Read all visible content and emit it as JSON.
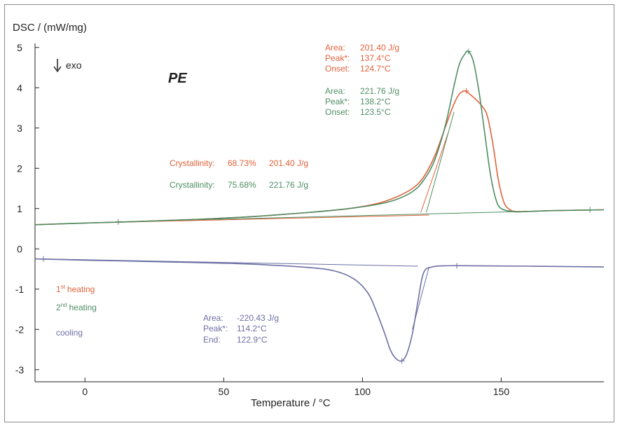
{
  "chart_data": {
    "type": "line",
    "title": "PE",
    "xlabel": "Temperature / °C",
    "ylabel": "DSC / (mW/mg)",
    "xlim": [
      -18,
      187
    ],
    "ylim": [
      -3.3,
      5.1
    ],
    "x_ticks": [
      "0",
      "50",
      "100",
      "150"
    ],
    "y_ticks": [
      "5",
      "4",
      "3",
      "2",
      "1",
      "0",
      "-1",
      "-2",
      "-3"
    ],
    "exo_label": "exo",
    "colors": {
      "first_heating": "#e0623a",
      "second_heating": "#4e8d64",
      "cooling": "#6c6fa4"
    },
    "series": [
      {
        "name": "1st heating",
        "x": [
          -18,
          0,
          20,
          40,
          60,
          80,
          95,
          105,
          112,
          118,
          122,
          126,
          130,
          133,
          135,
          137,
          139,
          141,
          143,
          145,
          147,
          149,
          151,
          153,
          155,
          160,
          170,
          187
        ],
        "y": [
          0.6,
          0.64,
          0.68,
          0.73,
          0.8,
          0.9,
          1.0,
          1.12,
          1.28,
          1.5,
          1.78,
          2.3,
          3.05,
          3.6,
          3.85,
          3.92,
          3.82,
          3.7,
          3.55,
          3.3,
          2.6,
          1.7,
          1.15,
          0.98,
          0.93,
          0.93,
          0.95,
          0.97
        ]
      },
      {
        "name": "2nd heating",
        "x": [
          -18,
          0,
          20,
          40,
          60,
          80,
          95,
          105,
          112,
          118,
          122,
          126,
          130,
          133,
          135,
          137,
          138.2,
          140,
          142,
          144,
          146,
          148,
          150,
          155,
          160,
          170,
          187
        ],
        "y": [
          0.6,
          0.64,
          0.68,
          0.73,
          0.8,
          0.9,
          1.0,
          1.1,
          1.22,
          1.42,
          1.7,
          2.2,
          3.1,
          4.05,
          4.6,
          4.85,
          4.9,
          4.65,
          3.9,
          2.9,
          1.9,
          1.25,
          1.0,
          0.92,
          0.93,
          0.95,
          0.97
        ]
      },
      {
        "name": "cooling",
        "x": [
          -18,
          0,
          20,
          40,
          60,
          80,
          90,
          97,
          102,
          105,
          108,
          110,
          112,
          114.2,
          116,
          118,
          120,
          122,
          125,
          130,
          140,
          160,
          187
        ],
        "y": [
          -0.25,
          -0.28,
          -0.31,
          -0.34,
          -0.38,
          -0.46,
          -0.55,
          -0.75,
          -1.1,
          -1.55,
          -2.1,
          -2.5,
          -2.72,
          -2.78,
          -2.6,
          -2.1,
          -1.3,
          -0.6,
          -0.45,
          -0.42,
          -0.42,
          -0.43,
          -0.45
        ]
      }
    ],
    "legend": {
      "first_heating_prefix": "1",
      "first_heating_sup": "st",
      "first_heating_label": "heating",
      "second_heating_prefix": "2",
      "second_heating_sup": "nd",
      "second_heating_label": "heating",
      "cooling_label": "cooling"
    },
    "annotations": {
      "first_heating": {
        "area_label": "Area:",
        "area": "201.40 J/g",
        "peak_label": "Peak*:",
        "peak": "137.4°C",
        "onset_label": "Onset:",
        "onset": "124.7°C"
      },
      "second_heating": {
        "area_label": "Area:",
        "area": "221.76 J/g",
        "peak_label": "Peak*:",
        "peak": "138.2°C",
        "onset_label": "Onset:",
        "onset": "123.5°C"
      },
      "cooling": {
        "area_label": "Area:",
        "area": "-220.43 J/g",
        "peak_label": "Peak*:",
        "peak": "114.2°C",
        "end_label": "End:",
        "end": "122.9°C"
      },
      "crystallinity_1": {
        "label": "Crystallinity:",
        "percent": "68.73%",
        "area": "201.40 J/g"
      },
      "crystallinity_2": {
        "label": "Crystallinity:",
        "percent": "75.68%",
        "area": "221.76 J/g"
      }
    }
  }
}
